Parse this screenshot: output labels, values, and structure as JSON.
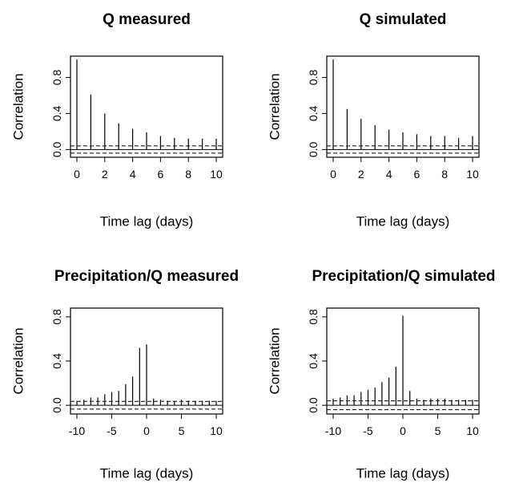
{
  "chart_data": [
    {
      "type": "bar",
      "title": "Q measured",
      "xlabel": "Time lag (days)",
      "ylabel": "Correlation",
      "xlim": [
        0,
        10
      ],
      "ylim": [
        -0.05,
        1.0
      ],
      "xticks": [
        0,
        2,
        4,
        6,
        8,
        10
      ],
      "yticks": [
        0.0,
        0.4,
        0.8
      ],
      "ytick_labels": [
        "0.0",
        "0.4",
        "0.8"
      ],
      "ci": 0.04,
      "x": [
        0,
        1,
        2,
        3,
        4,
        5,
        6,
        7,
        8,
        9,
        10
      ],
      "values": [
        1.0,
        0.61,
        0.4,
        0.29,
        0.23,
        0.19,
        0.15,
        0.13,
        0.12,
        0.12,
        0.12
      ]
    },
    {
      "type": "bar",
      "title": "Q simulated",
      "xlabel": "Time lag (days)",
      "ylabel": "Correlation",
      "xlim": [
        0,
        10
      ],
      "ylim": [
        -0.05,
        1.0
      ],
      "xticks": [
        0,
        2,
        4,
        6,
        8,
        10
      ],
      "yticks": [
        0.0,
        0.4,
        0.8
      ],
      "ytick_labels": [
        "0.0",
        "0.4",
        "0.8"
      ],
      "ci": 0.04,
      "x": [
        0,
        1,
        2,
        3,
        4,
        5,
        6,
        7,
        8,
        9,
        10
      ],
      "values": [
        1.0,
        0.45,
        0.34,
        0.27,
        0.22,
        0.19,
        0.17,
        0.15,
        0.15,
        0.13,
        0.15
      ]
    },
    {
      "type": "bar",
      "title": "Precipitation/Q measured",
      "xlabel": "Time lag (days)",
      "ylabel": "Correlation",
      "xlim": [
        -10,
        10
      ],
      "ylim": [
        -0.05,
        0.85
      ],
      "xticks": [
        -10,
        -5,
        0,
        5,
        10
      ],
      "yticks": [
        0.0,
        0.4,
        0.8
      ],
      "ytick_labels": [
        "0.0",
        "0.4",
        "0.8"
      ],
      "ci": 0.035,
      "x": [
        -10,
        -9,
        -8,
        -7,
        -6,
        -5,
        -4,
        -3,
        -2,
        -1,
        0,
        1,
        2,
        3,
        4,
        5,
        6,
        7,
        8,
        9,
        10
      ],
      "values": [
        0.04,
        0.05,
        0.07,
        0.07,
        0.1,
        0.12,
        0.13,
        0.19,
        0.26,
        0.52,
        0.55,
        0.06,
        0.05,
        0.04,
        0.04,
        0.05,
        0.04,
        0.04,
        0.04,
        0.04,
        0.04
      ]
    },
    {
      "type": "bar",
      "title": "Precipitation/Q simulated",
      "xlabel": "Time lag (days)",
      "ylabel": "Correlation",
      "xlim": [
        -10,
        10
      ],
      "ylim": [
        -0.05,
        0.85
      ],
      "xticks": [
        -10,
        -5,
        0,
        5,
        10
      ],
      "yticks": [
        0.0,
        0.4,
        0.8
      ],
      "ytick_labels": [
        "0.0",
        "0.4",
        "0.8"
      ],
      "ci": 0.04,
      "x": [
        -10,
        -9,
        -8,
        -7,
        -6,
        -5,
        -4,
        -3,
        -2,
        -1,
        0,
        1,
        2,
        3,
        4,
        5,
        6,
        7,
        8,
        9,
        10
      ],
      "values": [
        0.06,
        0.07,
        0.09,
        0.09,
        0.12,
        0.14,
        0.16,
        0.21,
        0.25,
        0.35,
        0.81,
        0.13,
        0.06,
        0.05,
        0.06,
        0.06,
        0.06,
        0.05,
        0.05,
        0.05,
        0.05
      ]
    }
  ]
}
